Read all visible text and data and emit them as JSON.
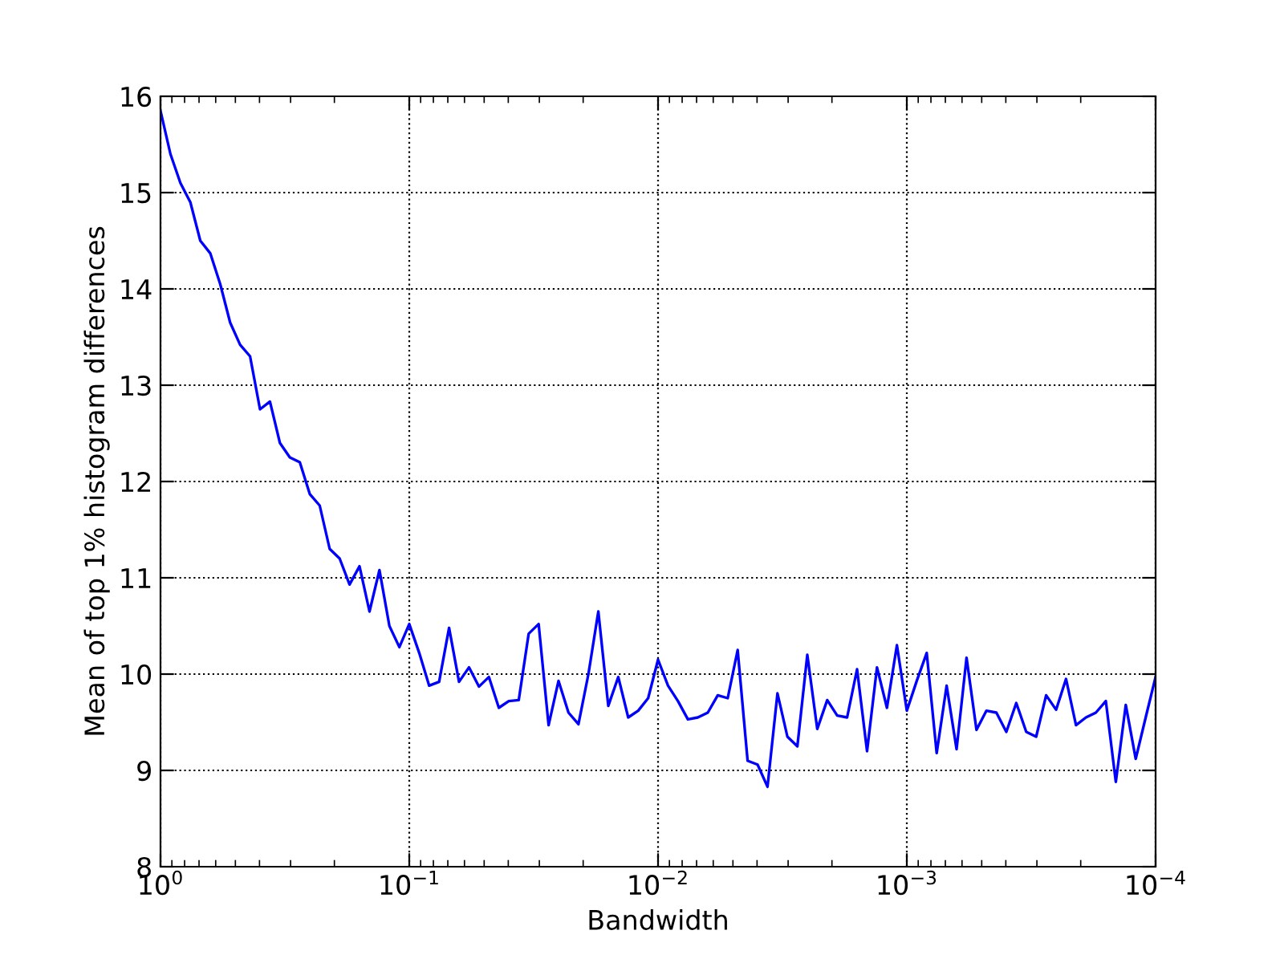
{
  "chart_data": {
    "type": "line",
    "xlabel": "Bandwidth",
    "ylabel": "Mean of top 1% histogram differences",
    "log": "x",
    "grid": true,
    "line_style": "solid",
    "marker": "none",
    "xlim": [
      1,
      0.0001
    ],
    "xticks": [
      {
        "value": 1,
        "label": "10$^{0}$"
      },
      {
        "value": 0.1,
        "label": "10$^{−1}$"
      },
      {
        "value": 0.01,
        "label": "10$^{−2}$"
      },
      {
        "value": 0.001,
        "label": "10$^{−3}$"
      },
      {
        "value": 0.0001,
        "label": "10$^{−4}$"
      }
    ],
    "ylim": [
      8,
      16
    ],
    "yticks": [
      8,
      9,
      10,
      11,
      12,
      13,
      14,
      15,
      16
    ],
    "x": [
      1,
      0.912,
      0.8318,
      0.7586,
      0.6918,
      0.631,
      0.5754,
      0.5248,
      0.4786,
      0.4365,
      0.3981,
      0.3631,
      0.3311,
      0.302,
      0.2754,
      0.2512,
      0.2291,
      0.2089,
      0.1905,
      0.1738,
      0.1585,
      0.1445,
      0.1318,
      0.1202,
      0.1096,
      0.1,
      0.0912,
      0.08318,
      0.07586,
      0.06918,
      0.0631,
      0.05754,
      0.05248,
      0.04786,
      0.04365,
      0.03981,
      0.03631,
      0.03311,
      0.0302,
      0.02754,
      0.02512,
      0.02291,
      0.02089,
      0.01905,
      0.01738,
      0.01585,
      0.01445,
      0.01318,
      0.01202,
      0.01096,
      0.01,
      0.00912,
      0.008318,
      0.007586,
      0.006918,
      0.00631,
      0.005754,
      0.005248,
      0.004786,
      0.004365,
      0.003981,
      0.003631,
      0.003311,
      0.00302,
      0.002754,
      0.002512,
      0.002291,
      0.002089,
      0.001905,
      0.001738,
      0.001585,
      0.001445,
      0.001318,
      0.001202,
      0.001096,
      0.001,
      0.000912,
      0.0008318,
      0.0007586,
      0.0006918,
      0.000631,
      0.0005754,
      0.0005248,
      0.0004786,
      0.0004365,
      0.0003981,
      0.0003631,
      0.0003311,
      0.000302,
      0.0002754,
      0.0002512,
      0.0002291,
      0.0002089,
      0.0001905,
      0.0001738,
      0.0001585,
      0.0001445,
      0.0001318,
      0.0001202,
      0.0001096,
      0.0001
    ],
    "series": [
      {
        "color": "#0000ff",
        "values": [
          15.85,
          15.4,
          15.1,
          14.9,
          14.5,
          14.37,
          14.05,
          13.65,
          13.42,
          13.3,
          12.75,
          12.83,
          12.4,
          12.25,
          12.2,
          11.87,
          11.75,
          11.3,
          11.2,
          10.93,
          11.12,
          10.65,
          11.08,
          10.5,
          10.28,
          10.52,
          10.22,
          9.88,
          9.92,
          10.48,
          9.92,
          10.07,
          9.87,
          9.97,
          9.65,
          9.72,
          9.73,
          10.42,
          10.52,
          9.47,
          9.93,
          9.6,
          9.48,
          10.0,
          10.65,
          9.67,
          9.97,
          9.55,
          9.62,
          9.75,
          10.15,
          9.88,
          9.72,
          9.53,
          9.55,
          9.6,
          9.78,
          9.75,
          10.25,
          9.1,
          9.06,
          8.83,
          9.8,
          9.35,
          9.25,
          10.2,
          9.43,
          9.73,
          9.57,
          9.55,
          10.05,
          9.2,
          10.07,
          9.65,
          10.3,
          9.62,
          9.93,
          10.22,
          9.18,
          9.88,
          9.22,
          10.17,
          9.42,
          9.62,
          9.6,
          9.4,
          9.7,
          9.4,
          9.35,
          9.78,
          9.63,
          9.95,
          9.47,
          9.55,
          9.6,
          9.72,
          8.88,
          9.68,
          9.12,
          9.55,
          9.97
        ]
      }
    ]
  }
}
